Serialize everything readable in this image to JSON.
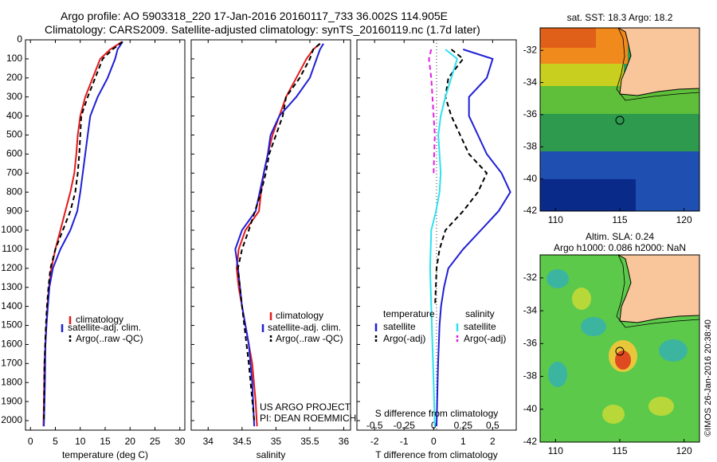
{
  "header": {
    "line1": "Argo profile: AO 5903318_220 17-Jan-2016 20160117_733 36.002S 114.905E",
    "line2": "Climatology: CARS2009. Satellite-adjusted climatology: synTS_20160119.nc (1.7d later)"
  },
  "colors": {
    "climatology": "#e41a1c",
    "satellite": "#1f1fd6",
    "argo": "#000000",
    "satellite_salinity": "#2fe0f0",
    "argo_salinity": "#e020e0",
    "land": "#f9c59a"
  },
  "chart_data": [
    {
      "type": "line",
      "panel": "temperature",
      "xlabel": "temperature (deg C)",
      "ylabel": "",
      "xlim": [
        -1,
        31
      ],
      "ylim": [
        2050,
        0
      ],
      "xticks": [
        "0",
        "5",
        "10",
        "15",
        "20",
        "25",
        "30"
      ],
      "xtick_values": [
        0,
        5,
        10,
        15,
        20,
        25,
        30
      ],
      "yticks": [
        "0",
        "100",
        "200",
        "300",
        "400",
        "500",
        "600",
        "700",
        "800",
        "900",
        "1000",
        "1100",
        "1200",
        "1300",
        "1400",
        "1500",
        "1600",
        "1700",
        "1800",
        "1900",
        "2000"
      ],
      "ytick_values": [
        0,
        100,
        200,
        300,
        400,
        500,
        600,
        700,
        800,
        900,
        1000,
        1100,
        1200,
        1300,
        1400,
        1500,
        1600,
        1700,
        1800,
        1900,
        2000
      ],
      "legend": [
        "climatology",
        "satellite-adj. clim.",
        "Argo(..raw -QC)"
      ],
      "series": [
        {
          "name": "climatology",
          "style": "solid",
          "color_key": "climatology",
          "x": [
            18.4,
            16,
            14,
            12.5,
            11,
            10,
            9.5,
            9.2,
            8.8,
            8,
            7,
            6,
            5,
            4.2,
            3.7,
            3.4,
            3.2,
            3,
            2.8,
            2.7,
            2.6
          ],
          "y": [
            10,
            50,
            100,
            200,
            300,
            400,
            500,
            600,
            700,
            800,
            900,
            1000,
            1100,
            1200,
            1300,
            1400,
            1500,
            1600,
            1700,
            1900,
            2030
          ]
        },
        {
          "name": "satellite-adj. clim.",
          "style": "solid",
          "color_key": "satellite",
          "x": [
            18.5,
            17.5,
            17,
            15.5,
            13.5,
            12,
            11.5,
            11,
            10.5,
            10,
            9.4,
            8,
            6,
            4.5,
            3.8,
            3.5,
            3.2,
            3,
            2.9,
            2.7
          ],
          "y": [
            10,
            50,
            100,
            200,
            300,
            400,
            500,
            600,
            700,
            800,
            900,
            1000,
            1100,
            1200,
            1300,
            1400,
            1500,
            1600,
            1800,
            2030
          ]
        },
        {
          "name": "Argo(..raw -QC)",
          "style": "dashed",
          "color_key": "argo",
          "x": [
            18.5,
            16.5,
            14.5,
            13,
            11.5,
            10.2,
            10,
            9.8,
            9.5,
            9,
            8,
            6.5,
            5,
            4,
            3.6,
            3.3,
            3.1,
            2.8,
            2.7
          ],
          "y": [
            10,
            50,
            100,
            200,
            300,
            400,
            500,
            600,
            700,
            800,
            900,
            1000,
            1100,
            1200,
            1300,
            1400,
            1500,
            1700,
            2000
          ]
        }
      ]
    },
    {
      "type": "line",
      "panel": "salinity",
      "xlabel": "salinity",
      "ylabel": "",
      "xlim": [
        33.75,
        36.1
      ],
      "ylim": [
        2050,
        0
      ],
      "xticks": [
        "34",
        "34.5",
        "35",
        "35.5",
        "36"
      ],
      "xtick_values": [
        34,
        34.5,
        35,
        35.5,
        36
      ],
      "legend": [
        "climatology",
        "satellite-adj. clim.",
        "Argo(..raw -QC)"
      ],
      "series": [
        {
          "name": "climatology",
          "style": "solid",
          "color_key": "climatology",
          "x": [
            35.65,
            35.55,
            35.45,
            35.3,
            35.15,
            35.05,
            34.95,
            34.88,
            34.82,
            34.78,
            34.75,
            34.55,
            34.45,
            34.42,
            34.45,
            34.5,
            34.55,
            34.6,
            34.65,
            34.7,
            34.72
          ],
          "y": [
            20,
            50,
            100,
            200,
            300,
            400,
            500,
            600,
            700,
            800,
            900,
            1000,
            1100,
            1200,
            1300,
            1400,
            1500,
            1600,
            1700,
            1900,
            2030
          ]
        },
        {
          "name": "satellite-adj. clim.",
          "style": "solid",
          "color_key": "satellite",
          "x": [
            35.7,
            35.65,
            35.6,
            35.5,
            35.3,
            35.05,
            34.92,
            34.88,
            34.82,
            34.76,
            34.7,
            34.5,
            34.4,
            34.44,
            34.5,
            34.55,
            34.6,
            34.65,
            34.68
          ],
          "y": [
            20,
            50,
            100,
            200,
            300,
            400,
            500,
            600,
            700,
            800,
            900,
            1000,
            1100,
            1200,
            1400,
            1500,
            1600,
            1800,
            2030
          ]
        },
        {
          "name": "Argo(..raw -QC)",
          "style": "dashed",
          "color_key": "argo",
          "x": [
            35.65,
            35.55,
            35.5,
            35.35,
            35.15,
            35.1,
            35,
            34.9,
            34.85,
            34.78,
            34.6,
            34.5,
            34.44,
            34.5,
            34.6,
            34.68
          ],
          "y": [
            20,
            50,
            100,
            200,
            300,
            400,
            500,
            600,
            700,
            800,
            1000,
            1100,
            1200,
            1400,
            1700,
            2000
          ]
        }
      ]
    },
    {
      "type": "line",
      "panel": "difference",
      "xlabel": "T difference from climatology",
      "top_label": "S difference from climatology",
      "xlim": [
        -2.6,
        2.8
      ],
      "ylim": [
        2050,
        0
      ],
      "xticks": [
        "-2",
        "-1",
        "0",
        "1",
        "2"
      ],
      "xtick_values": [
        -2,
        -1,
        0,
        1,
        2
      ],
      "sticks": [
        "-0.5",
        "-0.25",
        "0",
        "0.25",
        "0.5"
      ],
      "stick_values": [
        -0.5,
        -0.25,
        0,
        0.25,
        0.5
      ],
      "s_scale_factor": 4,
      "legend_headers": [
        "temperature",
        "salinity"
      ],
      "legend": [
        "satellite",
        "Argo(-adj)",
        "satellite",
        "Argo(-adj)"
      ],
      "series": [
        {
          "name": "temperature satellite",
          "style": "solid",
          "color_key": "satellite",
          "x": [
            1,
            2,
            1.8,
            1.2,
            1.2,
            1.5,
            1.8,
            2.3,
            2.6,
            2.2,
            1.6,
            1,
            0.5,
            0.35,
            0.25,
            0.2,
            0.15,
            0.12,
            0.1
          ],
          "y": [
            50,
            100,
            200,
            300,
            400,
            500,
            600,
            700,
            800,
            900,
            1000,
            1100,
            1200,
            1300,
            1400,
            1500,
            1700,
            1900,
            2030
          ]
        },
        {
          "name": "temperature Argo(-adj)",
          "style": "dashed",
          "color_key": "argo",
          "x": [
            0.6,
            1,
            0.5,
            0.4,
            0.6,
            0.9,
            1.2,
            1.8,
            1.5,
            1,
            0.4,
            0.2,
            0.1,
            0.05
          ],
          "y": [
            50,
            100,
            200,
            300,
            400,
            500,
            600,
            700,
            800,
            900,
            1000,
            1100,
            1200,
            1400
          ]
        },
        {
          "name": "salinity satellite",
          "style": "solid",
          "color_key": "satellite_salinity",
          "x": [
            0.1,
            0.2,
            0.15,
            0.1,
            0.06,
            0.04,
            0.05,
            0.06,
            0.05,
            0.02,
            -0.02,
            -0.03,
            -0.02,
            -0.01,
            0,
            0.01
          ],
          "y": [
            50,
            100,
            200,
            300,
            400,
            500,
            600,
            700,
            800,
            900,
            1000,
            1200,
            1400,
            1600,
            1800,
            2030
          ]
        },
        {
          "name": "salinity Argo(-adj)",
          "style": "dashed",
          "color_key": "argo_salinity",
          "x": [
            -0.02,
            -0.04,
            -0.02,
            -0.01,
            0,
            0.01,
            0.005,
            0
          ],
          "y": [
            50,
            100,
            200,
            300,
            400,
            500,
            600,
            700
          ]
        }
      ]
    }
  ],
  "maps": [
    {
      "title": "sat. SST: 18.3 Argo: 18.2",
      "xticks": [
        "110",
        "115",
        "120"
      ],
      "yticks": [
        "-32",
        "-34",
        "-36",
        "-38",
        "-40",
        "-42"
      ],
      "colormap": "sst"
    },
    {
      "title1": "Altim. SLA: 0.24",
      "title2": "Argo h1000: 0.086 h2000: NaN",
      "xticks": [
        "110",
        "115",
        "120"
      ],
      "yticks": [
        "-32",
        "-34",
        "-36",
        "-38",
        "-40",
        "-42"
      ],
      "colormap": "sla"
    }
  ],
  "notes": {
    "project": "US ARGO PROJECT",
    "pi": "PI: DEAN ROEMMICH",
    "credit": "©IMOS 26-Jan-2016 20:38:40"
  }
}
